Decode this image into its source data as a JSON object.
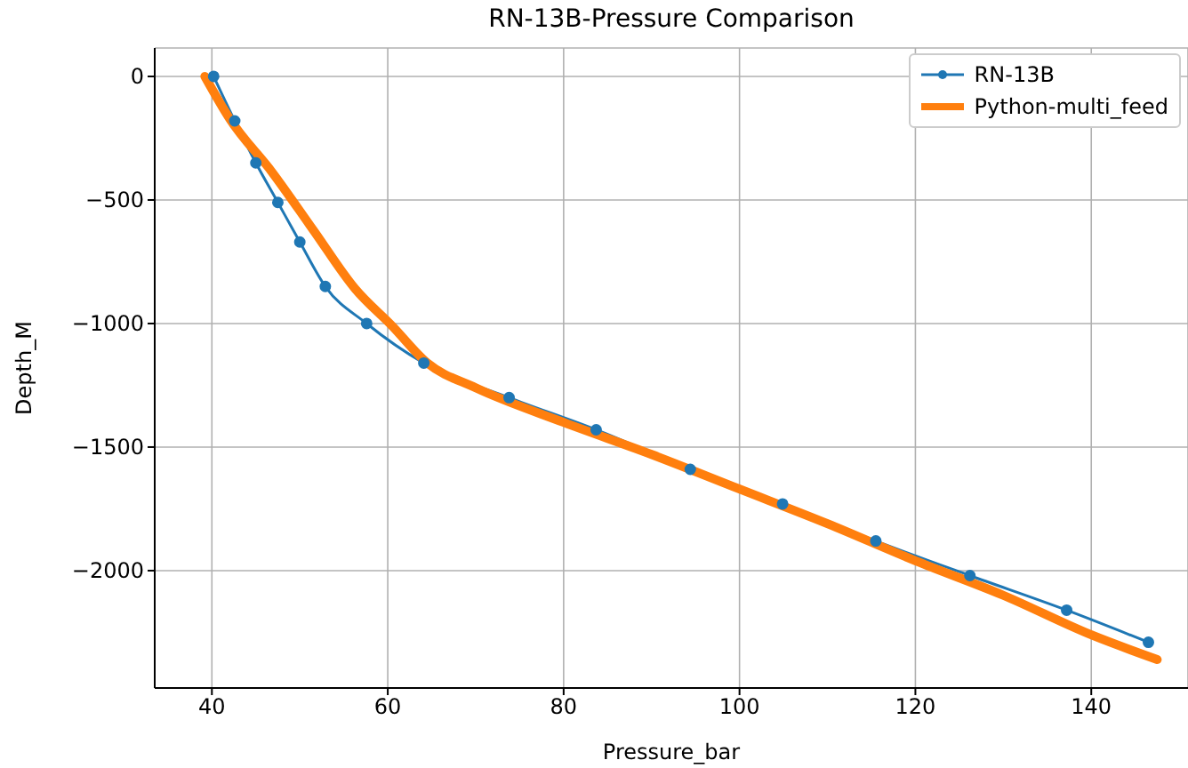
{
  "chart_data": {
    "type": "line",
    "title": "RN-13B-Pressure Comparison",
    "xlabel": "Pressure_bar",
    "ylabel": "Depth_M",
    "xlim": [
      33.5,
      151
    ],
    "xticks": [
      40,
      60,
      80,
      100,
      120,
      140
    ],
    "ylim": [
      -2475,
      115
    ],
    "yticks": [
      0,
      -500,
      -1000,
      -1500,
      -2000
    ],
    "grid": true,
    "legend": "top right",
    "series": [
      {
        "name": "RN-13B",
        "color": "#1f77b4",
        "marker": "circle",
        "x": [
          40.2,
          42.6,
          45,
          47.5,
          50,
          52.9,
          57.6,
          64.1,
          73.8,
          83.7,
          94.4,
          104.9,
          115.5,
          126.2,
          137.2,
          146.5
        ],
        "values": [
          0,
          -180,
          -350,
          -510,
          -670,
          -850,
          -1000,
          -1160,
          -1300,
          -1430,
          -1590,
          -1730,
          -1880,
          -2020,
          -2160,
          -2290
        ]
      },
      {
        "name": "Python-multi_feed",
        "color": "#ff7f0e",
        "marker": "none",
        "x": [
          39.2,
          42,
          46.9,
          51.5,
          56.3,
          60.5,
          64.5,
          70,
          80,
          90,
          100,
          110,
          120,
          130,
          140,
          147.5
        ],
        "values": [
          0,
          -170,
          -390,
          -620,
          -860,
          -1010,
          -1160,
          -1260,
          -1400,
          -1530,
          -1670,
          -1810,
          -1960,
          -2100,
          -2260,
          -2360
        ]
      }
    ]
  }
}
